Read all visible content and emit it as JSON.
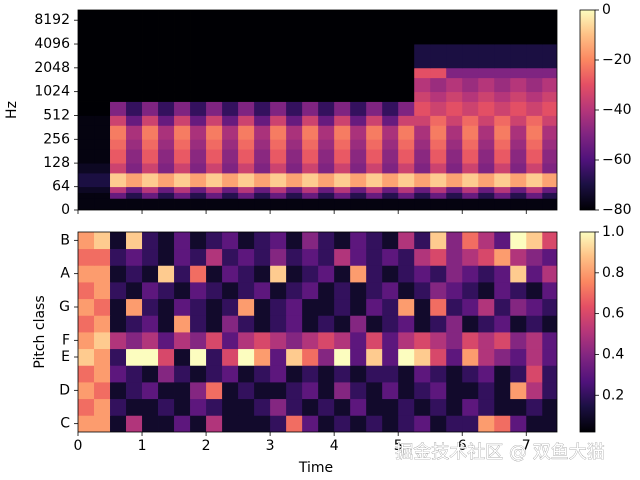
{
  "chart_data": [
    {
      "type": "heatmap",
      "colormap": "magma",
      "yscale": "symlog",
      "linthresh": 65.4,
      "y_label": "Hz",
      "x": [
        0,
        0.25,
        0.5,
        0.75,
        1,
        1.25,
        1.5,
        1.75,
        2,
        2.25,
        2.5,
        2.75,
        3,
        3.25,
        3.5,
        3.75,
        4,
        4.25,
        4.5,
        4.75,
        5,
        5.25,
        5.5,
        5.75,
        6,
        6.25,
        6.5,
        6.75,
        7,
        7.25,
        7.5
      ],
      "y": [
        0,
        32,
        48,
        64,
        96,
        128,
        192,
        256,
        384,
        512,
        768,
        1024,
        1536,
        2048,
        4096,
        11025
      ],
      "xlim": [
        0,
        7.48
      ],
      "xticks": [
        0,
        1,
        2,
        3,
        4,
        5,
        6,
        7
      ],
      "ylim": [
        0,
        11025
      ],
      "yticks": [
        0,
        64,
        128,
        256,
        512,
        1024,
        2048,
        4096,
        8192
      ],
      "zlim": [
        -80,
        0
      ],
      "zticks": [
        0,
        {
          "value": -20,
          "label": "−20"
        },
        {
          "value": -40,
          "label": "−40"
        },
        {
          "value": -60,
          "label": "−60"
        },
        {
          "value": -80,
          "label": "−80"
        }
      ],
      "z": [
        [
          -78,
          -78,
          -78,
          -78,
          -78,
          -78,
          -78,
          -78,
          -78,
          -78,
          -78,
          -78,
          -78,
          -78,
          -78,
          -78,
          -78,
          -78,
          -78,
          -78,
          -78,
          -78,
          -78,
          -78,
          -78,
          -78,
          -78,
          -78,
          -78,
          -78
        ],
        [
          -78,
          -78,
          -55,
          -68,
          -55,
          -68,
          -55,
          -68,
          -55,
          -68,
          -55,
          -68,
          -55,
          -68,
          -55,
          -68,
          -55,
          -68,
          -55,
          -68,
          -55,
          -68,
          -55,
          -68,
          -55,
          -68,
          -55,
          -68,
          -55,
          -68
        ],
        [
          -75,
          -75,
          -40,
          -55,
          -40,
          -55,
          -40,
          -55,
          -40,
          -55,
          -40,
          -55,
          -40,
          -55,
          -40,
          -55,
          -40,
          -55,
          -40,
          -55,
          -40,
          -55,
          -40,
          -55,
          -40,
          -55,
          -40,
          -55,
          -40,
          -55
        ],
        [
          -70,
          -70,
          -8,
          -15,
          -8,
          -15,
          -8,
          -15,
          -8,
          -15,
          -8,
          -15,
          -8,
          -15,
          -8,
          -15,
          -8,
          -15,
          -8,
          -15,
          -8,
          -15,
          -8,
          -15,
          -8,
          -15,
          -8,
          -15,
          -8,
          -15
        ],
        [
          -75,
          -75,
          -35,
          -50,
          -35,
          -50,
          -35,
          -50,
          -35,
          -50,
          -35,
          -50,
          -35,
          -50,
          -35,
          -50,
          -35,
          -50,
          -35,
          -50,
          -35,
          -50,
          -35,
          -50,
          -35,
          -50,
          -35,
          -50,
          -35,
          -50
        ],
        [
          -78,
          -78,
          -28,
          -48,
          -28,
          -48,
          -28,
          -48,
          -28,
          -48,
          -28,
          -48,
          -28,
          -48,
          -28,
          -48,
          -28,
          -48,
          -28,
          -48,
          -28,
          -48,
          -28,
          -48,
          -28,
          -48,
          -28,
          -48,
          -28,
          -48
        ],
        [
          -78,
          -78,
          -25,
          -45,
          -25,
          -45,
          -25,
          -45,
          -25,
          -45,
          -25,
          -45,
          -25,
          -45,
          -25,
          -45,
          -25,
          -45,
          -25,
          -45,
          -25,
          -45,
          -25,
          -45,
          -25,
          -45,
          -25,
          -45,
          -25,
          -45
        ],
        [
          -78,
          -78,
          -22,
          -42,
          -22,
          -42,
          -22,
          -42,
          -22,
          -42,
          -22,
          -42,
          -22,
          -42,
          -22,
          -42,
          -22,
          -42,
          -22,
          -42,
          -22,
          -42,
          -22,
          -42,
          -22,
          -42,
          -22,
          -42,
          -22,
          -42
        ],
        [
          -78,
          -78,
          -35,
          -55,
          -35,
          -55,
          -35,
          -55,
          -35,
          -55,
          -35,
          -55,
          -35,
          -55,
          -35,
          -55,
          -35,
          -55,
          -35,
          -55,
          -35,
          -35,
          -25,
          -35,
          -25,
          -35,
          -25,
          -35,
          -25,
          -35
        ],
        [
          -80,
          -80,
          -50,
          -65,
          -50,
          -65,
          -50,
          -65,
          -50,
          -65,
          -50,
          -65,
          -50,
          -65,
          -50,
          -65,
          -50,
          -65,
          -50,
          -65,
          -50,
          -30,
          -35,
          -30,
          -35,
          -30,
          -35,
          -30,
          -35,
          -30
        ],
        [
          -80,
          -80,
          -80,
          -80,
          -80,
          -80,
          -80,
          -80,
          -80,
          -80,
          -80,
          -80,
          -80,
          -80,
          -80,
          -80,
          -80,
          -80,
          -80,
          -80,
          -80,
          -35,
          -40,
          -35,
          -40,
          -35,
          -40,
          -35,
          -40,
          -35
        ],
        [
          -80,
          -80,
          -80,
          -80,
          -80,
          -80,
          -80,
          -80,
          -80,
          -80,
          -80,
          -80,
          -80,
          -80,
          -80,
          -80,
          -80,
          -80,
          -80,
          -80,
          -80,
          -40,
          -45,
          -40,
          -45,
          -40,
          -45,
          -40,
          -45,
          -40
        ],
        [
          -80,
          -80,
          -80,
          -80,
          -80,
          -80,
          -80,
          -80,
          -80,
          -80,
          -80,
          -80,
          -80,
          -80,
          -80,
          -80,
          -80,
          -80,
          -80,
          -80,
          -80,
          -30,
          -30,
          -50,
          -50,
          -50,
          -50,
          -50,
          -50,
          -50
        ],
        [
          -80,
          -80,
          -80,
          -80,
          -80,
          -80,
          -80,
          -80,
          -80,
          -80,
          -80,
          -80,
          -80,
          -80,
          -80,
          -80,
          -80,
          -80,
          -80,
          -80,
          -80,
          -70,
          -70,
          -70,
          -70,
          -70,
          -70,
          -70,
          -70,
          -70
        ],
        [
          -80,
          -80,
          -80,
          -80,
          -80,
          -80,
          -80,
          -80,
          -80,
          -80,
          -80,
          -80,
          -80,
          -80,
          -80,
          -80,
          -80,
          -80,
          -80,
          -80,
          -80,
          -80,
          -80,
          -80,
          -80,
          -80,
          -80,
          -80,
          -80,
          -80
        ]
      ]
    },
    {
      "type": "heatmap",
      "colormap": "magma",
      "y_label": "Pitch class",
      "x_label": "Time",
      "x": [
        0,
        0.25,
        0.5,
        0.75,
        1,
        1.25,
        1.5,
        1.75,
        2,
        2.25,
        2.5,
        2.75,
        3,
        3.25,
        3.5,
        3.75,
        4,
        4.25,
        4.5,
        4.75,
        5,
        5.25,
        5.5,
        5.75,
        6,
        6.25,
        6.5,
        6.75,
        7,
        7.25,
        7.5
      ],
      "categories": [
        "C",
        null,
        "D",
        null,
        "E",
        "F",
        null,
        "G",
        null,
        "A",
        null,
        "B"
      ],
      "xlim": [
        0,
        7.48
      ],
      "xticks": [
        0,
        1,
        2,
        3,
        4,
        5,
        6,
        7
      ],
      "zlim": [
        0.02,
        1
      ],
      "zticks": [
        0.2,
        0.4,
        0.6,
        0.8,
        {
          "value": 1,
          "label": "1.0"
        }
      ],
      "z": [
        [
          0.8,
          0.8,
          0.1,
          0.5,
          0.1,
          0.1,
          0.3,
          0.1,
          0.5,
          0.1,
          0.1,
          0.1,
          0.2,
          0.7,
          0.3,
          0.1,
          0.2,
          0.1,
          0.2,
          0.1,
          0.2,
          0.3,
          0.1,
          0.2,
          0.2,
          0.8,
          0.7,
          0.3,
          0.1,
          0.1
        ],
        [
          0.7,
          0.8,
          0.2,
          0.1,
          0.1,
          0.2,
          0.1,
          0.3,
          0.2,
          0.1,
          0.1,
          0.2,
          0.4,
          0.2,
          0.1,
          0.2,
          0.1,
          0.3,
          0.1,
          0.1,
          0.2,
          0.1,
          0.2,
          0.1,
          0.3,
          0.2,
          0.1,
          0.1,
          0.2,
          0.1
        ],
        [
          0.8,
          0.7,
          0.1,
          0.2,
          0.3,
          0.1,
          0.1,
          0.4,
          0.7,
          0.1,
          0.2,
          0.1,
          0.1,
          0.2,
          0.3,
          0.1,
          0.4,
          0.2,
          0.1,
          0.3,
          0.1,
          0.2,
          0.3,
          0.1,
          0.1,
          0.2,
          0.1,
          0.8,
          0.5,
          0.2
        ],
        [
          0.7,
          0.8,
          0.3,
          0.2,
          0.1,
          0.4,
          0.2,
          0.1,
          0.2,
          0.3,
          0.1,
          0.2,
          0.3,
          0.1,
          0.2,
          0.1,
          0.2,
          0.1,
          0.2,
          0.2,
          0.1,
          0.3,
          0.2,
          0.1,
          0.2,
          0.3,
          0.1,
          0.2,
          0.6,
          0.2
        ],
        [
          0.9,
          0.8,
          0.2,
          1,
          1,
          0.6,
          0.1,
          1,
          0.2,
          0.6,
          1,
          0.8,
          0.3,
          0.9,
          0.7,
          0.4,
          1,
          0.3,
          0.9,
          0.3,
          1,
          0.9,
          0.6,
          0.3,
          0.8,
          0.5,
          0.4,
          0.3,
          0.5,
          0.3
        ],
        [
          0.8,
          0.9,
          0.5,
          0.4,
          0.5,
          0.3,
          0.5,
          0.4,
          0.6,
          0.3,
          0.5,
          0.6,
          0.5,
          0.4,
          0.5,
          0.6,
          0.5,
          0.3,
          0.6,
          0.3,
          0.5,
          0.6,
          0.5,
          0.4,
          0.6,
          0.5,
          0.6,
          0.4,
          0.5,
          0.3
        ],
        [
          0.7,
          0.8,
          0.1,
          0.2,
          0.3,
          0.1,
          0.8,
          0.2,
          0.1,
          0.4,
          0.2,
          0.1,
          0.2,
          0.3,
          0.1,
          0.2,
          0.1,
          0.4,
          0.1,
          0.2,
          0.3,
          0.1,
          0.2,
          0.4,
          0.1,
          0.2,
          0.3,
          0.1,
          0.2,
          0.1
        ],
        [
          0.8,
          0.7,
          0.1,
          0.8,
          0.2,
          0.1,
          0.3,
          0.2,
          0.1,
          0.2,
          0.8,
          0.1,
          0.2,
          0.3,
          0.1,
          0.1,
          0.2,
          0.1,
          0.3,
          0.2,
          0.8,
          0.1,
          0.7,
          0.2,
          0.3,
          0.5,
          0.2,
          0.4,
          0.3,
          0.2
        ],
        [
          0.7,
          0.8,
          0.2,
          0.1,
          0.3,
          0.2,
          0.1,
          0.3,
          0.2,
          0.1,
          0.2,
          0.3,
          0.1,
          0.2,
          0.3,
          0.1,
          0.2,
          0.1,
          0.2,
          0.3,
          0.1,
          0.2,
          0.4,
          0.3,
          0.2,
          0.1,
          0.3,
          0.2,
          0.1,
          0.3
        ],
        [
          0.8,
          0.8,
          0.1,
          0.2,
          0.1,
          0.9,
          0.2,
          0.7,
          0.1,
          0.3,
          0.2,
          0.1,
          0.9,
          0.1,
          0.2,
          0.3,
          0.1,
          0.8,
          0.2,
          0.1,
          0.2,
          0.3,
          0.2,
          0.4,
          0.3,
          0.2,
          0.3,
          0.9,
          0.3,
          0.5
        ],
        [
          0.7,
          0.7,
          0.2,
          0.3,
          0.2,
          0.1,
          0.3,
          0.2,
          0.5,
          0.2,
          0.3,
          0.2,
          0.4,
          0.2,
          0.3,
          0.2,
          0.5,
          0.3,
          0.2,
          0.3,
          0.2,
          0.5,
          0.6,
          0.4,
          0.5,
          0.6,
          0.8,
          0.5,
          0.4,
          0.3
        ],
        [
          0.8,
          0.9,
          0.1,
          0.9,
          0.2,
          0.1,
          0.3,
          0.1,
          0.2,
          0.3,
          0.1,
          0.2,
          0.3,
          0.1,
          0.4,
          0.2,
          0.1,
          0.3,
          0.2,
          0.1,
          0.5,
          0.2,
          0.9,
          0.4,
          0.7,
          0.5,
          0.3,
          1,
          0.9,
          0.6
        ]
      ]
    }
  ],
  "watermark": "掘金技术社区 @ 双鱼大猫"
}
